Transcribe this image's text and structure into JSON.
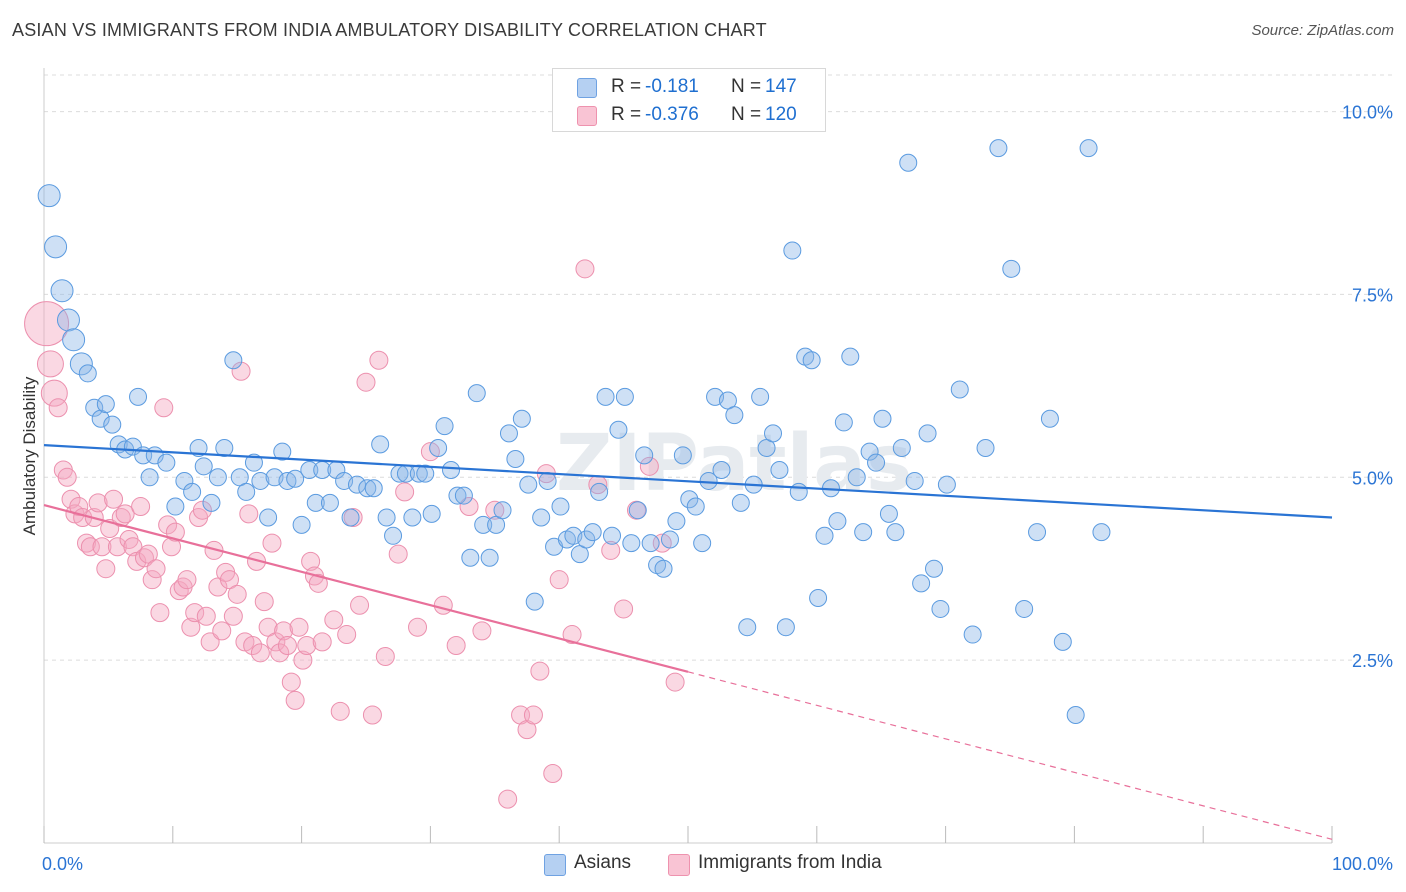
{
  "title": "ASIAN VS IMMIGRANTS FROM INDIA AMBULATORY DISABILITY CORRELATION CHART",
  "source": "Source: ZipAtlas.com",
  "watermark": "ZIPatlas",
  "legend": {
    "r_label": "R =",
    "n_label": "N =",
    "rows": [
      {
        "name": "Asians",
        "r": "-0.181",
        "n": "147",
        "color": "#8ab4e8"
      },
      {
        "name": "Immigrants from India",
        "r": "-0.376",
        "n": "120",
        "color": "#f4a9c0"
      }
    ]
  },
  "chart_data": {
    "type": "scatter",
    "title": "ASIAN VS IMMIGRANTS FROM INDIA AMBULATORY DISABILITY CORRELATION CHART",
    "xlabel": "",
    "ylabel": "Ambulatory Disability",
    "xlim": [
      0,
      100
    ],
    "ylim": [
      0,
      10.5
    ],
    "x_tick_labels": [
      "0.0%",
      "100.0%"
    ],
    "y_ticks": [
      2.5,
      5.0,
      7.5,
      10.0
    ],
    "y_tick_labels": [
      "2.5%",
      "5.0%",
      "7.5%",
      "10.0%"
    ],
    "grid": "horizontal dashed",
    "legend_position": "top-center",
    "colors": {
      "asians": "#5b9be0",
      "india": "#ef88a8",
      "asians_line": "#2a74d4",
      "india_line": "#e8709a"
    },
    "series": [
      {
        "name": "Asians",
        "trend": {
          "x0": 0,
          "y0": 5.44,
          "x1": 100,
          "y1": 4.45
        },
        "points": [
          [
            0.4,
            8.85
          ],
          [
            0.9,
            8.15
          ],
          [
            1.4,
            7.55
          ],
          [
            1.9,
            7.15
          ],
          [
            2.3,
            6.88
          ],
          [
            2.9,
            6.55
          ],
          [
            3.4,
            6.42
          ],
          [
            3.9,
            5.95
          ],
          [
            4.4,
            5.8
          ],
          [
            4.8,
            6.0
          ],
          [
            5.3,
            5.72
          ],
          [
            5.8,
            5.45
          ],
          [
            6.3,
            5.38
          ],
          [
            6.9,
            5.42
          ],
          [
            7.3,
            6.1
          ],
          [
            7.7,
            5.3
          ],
          [
            8.2,
            5.0
          ],
          [
            8.6,
            5.3
          ],
          [
            9.5,
            5.2
          ],
          [
            10.2,
            4.6
          ],
          [
            10.9,
            4.95
          ],
          [
            11.5,
            4.8
          ],
          [
            12.0,
            5.4
          ],
          [
            12.4,
            5.15
          ],
          [
            13.0,
            4.65
          ],
          [
            13.5,
            5.0
          ],
          [
            14.0,
            5.4
          ],
          [
            14.7,
            6.6
          ],
          [
            15.2,
            5.0
          ],
          [
            15.7,
            4.8
          ],
          [
            16.3,
            5.2
          ],
          [
            16.8,
            4.95
          ],
          [
            17.4,
            4.45
          ],
          [
            17.9,
            5.0
          ],
          [
            18.5,
            5.35
          ],
          [
            18.9,
            4.95
          ],
          [
            19.5,
            4.98
          ],
          [
            20.0,
            4.35
          ],
          [
            20.6,
            5.1
          ],
          [
            21.1,
            4.65
          ],
          [
            21.6,
            5.1
          ],
          [
            22.2,
            4.65
          ],
          [
            22.7,
            5.1
          ],
          [
            23.3,
            4.95
          ],
          [
            23.8,
            4.45
          ],
          [
            24.3,
            4.9
          ],
          [
            25.1,
            4.85
          ],
          [
            25.6,
            4.85
          ],
          [
            26.1,
            5.45
          ],
          [
            26.6,
            4.45
          ],
          [
            27.1,
            4.2
          ],
          [
            27.6,
            5.05
          ],
          [
            28.1,
            5.05
          ],
          [
            28.6,
            4.45
          ],
          [
            29.1,
            5.05
          ],
          [
            29.6,
            5.05
          ],
          [
            30.1,
            4.5
          ],
          [
            30.6,
            5.4
          ],
          [
            31.1,
            5.7
          ],
          [
            31.6,
            5.1
          ],
          [
            32.1,
            4.75
          ],
          [
            32.6,
            4.75
          ],
          [
            33.1,
            3.9
          ],
          [
            33.6,
            6.15
          ],
          [
            34.1,
            4.35
          ],
          [
            34.6,
            3.9
          ],
          [
            35.1,
            4.35
          ],
          [
            35.6,
            4.55
          ],
          [
            36.1,
            5.6
          ],
          [
            36.6,
            5.25
          ],
          [
            37.1,
            5.8
          ],
          [
            37.6,
            4.9
          ],
          [
            38.1,
            3.3
          ],
          [
            38.6,
            4.45
          ],
          [
            39.1,
            4.95
          ],
          [
            39.6,
            4.05
          ],
          [
            40.1,
            4.6
          ],
          [
            40.6,
            4.15
          ],
          [
            41.1,
            4.2
          ],
          [
            41.6,
            3.95
          ],
          [
            42.1,
            4.15
          ],
          [
            42.6,
            4.25
          ],
          [
            43.1,
            4.8
          ],
          [
            43.6,
            6.1
          ],
          [
            44.1,
            4.2
          ],
          [
            44.6,
            5.65
          ],
          [
            45.1,
            6.1
          ],
          [
            45.6,
            4.1
          ],
          [
            46.1,
            4.55
          ],
          [
            46.6,
            5.3
          ],
          [
            47.1,
            4.1
          ],
          [
            47.6,
            3.8
          ],
          [
            48.1,
            3.75
          ],
          [
            48.6,
            4.15
          ],
          [
            49.1,
            4.4
          ],
          [
            49.6,
            5.3
          ],
          [
            50.1,
            4.7
          ],
          [
            50.6,
            4.6
          ],
          [
            51.1,
            4.1
          ],
          [
            51.6,
            4.95
          ],
          [
            52.1,
            6.1
          ],
          [
            52.6,
            5.1
          ],
          [
            53.1,
            6.05
          ],
          [
            53.6,
            5.85
          ],
          [
            54.1,
            4.65
          ],
          [
            54.6,
            2.95
          ],
          [
            55.1,
            4.9
          ],
          [
            55.6,
            6.1
          ],
          [
            56.1,
            5.4
          ],
          [
            56.6,
            5.6
          ],
          [
            57.1,
            5.1
          ],
          [
            57.6,
            2.95
          ],
          [
            58.1,
            8.1
          ],
          [
            58.6,
            4.8
          ],
          [
            59.1,
            6.65
          ],
          [
            59.6,
            6.6
          ],
          [
            60.1,
            3.35
          ],
          [
            60.6,
            4.2
          ],
          [
            61.1,
            4.85
          ],
          [
            61.6,
            4.4
          ],
          [
            62.1,
            5.75
          ],
          [
            62.6,
            6.65
          ],
          [
            63.1,
            5.0
          ],
          [
            63.6,
            4.25
          ],
          [
            64.1,
            5.35
          ],
          [
            64.6,
            5.2
          ],
          [
            65.1,
            5.8
          ],
          [
            65.6,
            4.5
          ],
          [
            66.1,
            4.25
          ],
          [
            66.6,
            5.4
          ],
          [
            67.1,
            9.3
          ],
          [
            67.6,
            4.95
          ],
          [
            68.1,
            3.55
          ],
          [
            68.6,
            5.6
          ],
          [
            69.1,
            3.75
          ],
          [
            69.6,
            3.2
          ],
          [
            70.1,
            4.9
          ],
          [
            71.1,
            6.2
          ],
          [
            72.1,
            2.85
          ],
          [
            73.1,
            5.4
          ],
          [
            74.1,
            9.5
          ],
          [
            75.1,
            7.85
          ],
          [
            76.1,
            3.2
          ],
          [
            77.1,
            4.25
          ],
          [
            78.1,
            5.8
          ],
          [
            79.1,
            2.75
          ],
          [
            80.1,
            1.75
          ],
          [
            81.1,
            9.5
          ],
          [
            82.1,
            4.25
          ]
        ]
      },
      {
        "name": "Immigrants from India",
        "trend": {
          "x0": 0,
          "y0": 4.62,
          "x1": 50,
          "y1": 2.34
        },
        "trend_extended": {
          "x1": 100,
          "y1": 0.05
        },
        "points": [
          [
            0.2,
            7.1
          ],
          [
            0.5,
            6.55
          ],
          [
            0.8,
            6.15
          ],
          [
            1.1,
            5.95
          ],
          [
            1.5,
            5.1
          ],
          [
            1.8,
            5.0
          ],
          [
            2.1,
            4.7
          ],
          [
            2.4,
            4.5
          ],
          [
            2.7,
            4.6
          ],
          [
            3.0,
            4.45
          ],
          [
            3.3,
            4.1
          ],
          [
            3.6,
            4.05
          ],
          [
            3.9,
            4.45
          ],
          [
            4.2,
            4.65
          ],
          [
            4.5,
            4.05
          ],
          [
            4.8,
            3.75
          ],
          [
            5.1,
            4.3
          ],
          [
            5.4,
            4.7
          ],
          [
            5.7,
            4.05
          ],
          [
            6.0,
            4.45
          ],
          [
            6.3,
            4.5
          ],
          [
            6.6,
            4.15
          ],
          [
            6.9,
            4.05
          ],
          [
            7.2,
            3.85
          ],
          [
            7.5,
            4.6
          ],
          [
            7.8,
            3.9
          ],
          [
            8.1,
            3.95
          ],
          [
            8.4,
            3.6
          ],
          [
            8.7,
            3.75
          ],
          [
            9.0,
            3.15
          ],
          [
            9.3,
            5.95
          ],
          [
            9.6,
            4.35
          ],
          [
            9.9,
            4.05
          ],
          [
            10.2,
            4.25
          ],
          [
            10.5,
            3.45
          ],
          [
            10.8,
            3.5
          ],
          [
            11.1,
            3.6
          ],
          [
            11.4,
            2.95
          ],
          [
            11.7,
            3.15
          ],
          [
            12.0,
            4.45
          ],
          [
            12.3,
            4.55
          ],
          [
            12.6,
            3.1
          ],
          [
            12.9,
            2.75
          ],
          [
            13.2,
            4.0
          ],
          [
            13.5,
            3.5
          ],
          [
            13.8,
            2.9
          ],
          [
            14.1,
            3.7
          ],
          [
            14.4,
            3.6
          ],
          [
            14.7,
            3.1
          ],
          [
            15.0,
            3.4
          ],
          [
            15.3,
            6.45
          ],
          [
            15.6,
            2.75
          ],
          [
            15.9,
            4.5
          ],
          [
            16.2,
            2.7
          ],
          [
            16.5,
            3.85
          ],
          [
            16.8,
            2.6
          ],
          [
            17.1,
            3.3
          ],
          [
            17.4,
            2.95
          ],
          [
            17.7,
            4.1
          ],
          [
            18.0,
            2.75
          ],
          [
            18.3,
            2.6
          ],
          [
            18.6,
            2.9
          ],
          [
            18.9,
            2.7
          ],
          [
            19.2,
            2.2
          ],
          [
            19.5,
            1.95
          ],
          [
            19.8,
            2.95
          ],
          [
            20.1,
            2.5
          ],
          [
            20.4,
            2.7
          ],
          [
            20.7,
            3.85
          ],
          [
            21.0,
            3.65
          ],
          [
            21.3,
            3.55
          ],
          [
            21.6,
            2.75
          ],
          [
            22.5,
            3.05
          ],
          [
            23.0,
            1.8
          ],
          [
            23.5,
            2.85
          ],
          [
            24.0,
            4.45
          ],
          [
            24.5,
            3.25
          ],
          [
            25.0,
            6.3
          ],
          [
            25.5,
            1.75
          ],
          [
            26.0,
            6.6
          ],
          [
            26.5,
            2.55
          ],
          [
            27.5,
            3.95
          ],
          [
            28.0,
            4.8
          ],
          [
            29.0,
            2.95
          ],
          [
            30.0,
            5.35
          ],
          [
            31.0,
            3.25
          ],
          [
            32.0,
            2.7
          ],
          [
            33.0,
            4.6
          ],
          [
            34.0,
            2.9
          ],
          [
            35.0,
            4.55
          ],
          [
            36.0,
            0.6
          ],
          [
            37.0,
            1.75
          ],
          [
            37.5,
            1.55
          ],
          [
            38.0,
            1.75
          ],
          [
            38.5,
            2.35
          ],
          [
            39.0,
            5.05
          ],
          [
            39.5,
            0.95
          ],
          [
            40.0,
            3.6
          ],
          [
            41.0,
            2.85
          ],
          [
            42.0,
            7.85
          ],
          [
            43.0,
            4.9
          ],
          [
            44.0,
            4.0
          ],
          [
            45.0,
            3.2
          ],
          [
            46.0,
            4.55
          ],
          [
            47.0,
            5.15
          ],
          [
            48.0,
            4.1
          ],
          [
            49.0,
            2.2
          ]
        ]
      }
    ]
  }
}
